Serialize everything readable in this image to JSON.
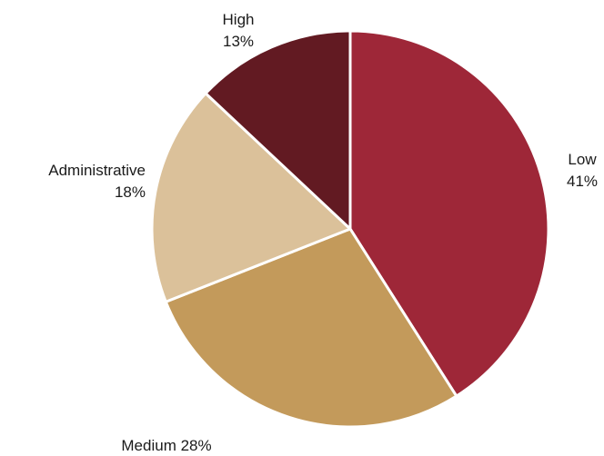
{
  "chart_data": {
    "type": "pie",
    "title": "",
    "start_angle_deg": 0,
    "direction": "clockwise",
    "slices": [
      {
        "label": "Low",
        "value": 41,
        "value_label": "41%",
        "color": "#9e2738"
      },
      {
        "label": "Medium",
        "value": 28,
        "value_label": "28%",
        "color": "#c39a5b"
      },
      {
        "label": "Administrative",
        "value": 18,
        "value_label": "18%",
        "color": "#dbc19a"
      },
      {
        "label": "High",
        "value": 13,
        "value_label": "13%",
        "color": "#621a22"
      }
    ]
  }
}
